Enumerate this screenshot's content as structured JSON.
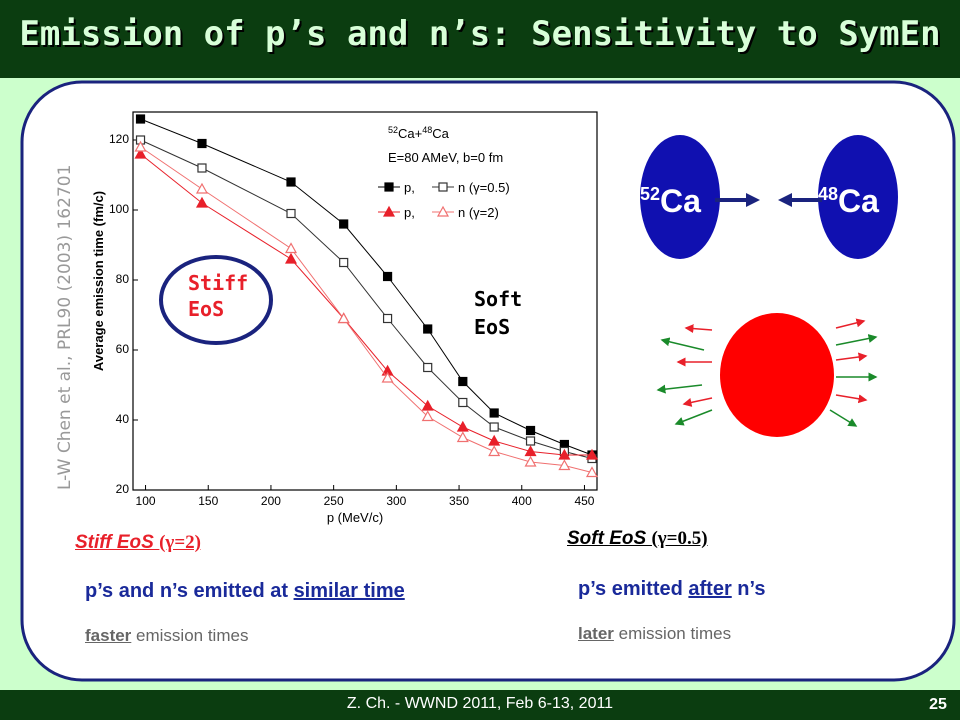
{
  "header": {
    "title": "Emission of p’s and n’s: Sensitivity to SymEn"
  },
  "citation": "L-W Chen et al., PRL90 (2003) 162701",
  "chart_data": {
    "type": "line",
    "annotation": {
      "reaction": [
        "52",
        "Ca+",
        "48",
        "Ca"
      ],
      "conditions": "E=80 AMeV, b=0 fm"
    },
    "xlabel": "p (MeV/c)",
    "ylabel": "Average emission time (fm/c)",
    "x": [
      96,
      145,
      216,
      258,
      293,
      325,
      353,
      378,
      407,
      434,
      456
    ],
    "xlim": [
      90,
      460
    ],
    "xticks": [
      100,
      150,
      200,
      250,
      300,
      350,
      400,
      450
    ],
    "ylim": [
      20,
      128
    ],
    "yticks": [
      20,
      40,
      60,
      80,
      100,
      120
    ],
    "series": [
      {
        "name": "p,",
        "color": "#000000",
        "marker": "square",
        "filled": true,
        "values": [
          126,
          119,
          108,
          96,
          81,
          66,
          51,
          42,
          37,
          33,
          30
        ]
      },
      {
        "name": "n (γ=0.5)",
        "color": "#333333",
        "marker": "square",
        "filled": false,
        "values": [
          120,
          112,
          99,
          85,
          69,
          55,
          45,
          38,
          34,
          31,
          29
        ]
      },
      {
        "name": "p,",
        "color": "#e8202a",
        "marker": "triangle",
        "filled": true,
        "values": [
          116,
          102,
          86,
          69,
          54,
          44,
          38,
          34,
          31,
          30,
          30
        ]
      },
      {
        "name": "n (γ=2)",
        "color": "#f07070",
        "marker": "triangle",
        "filled": false,
        "values": [
          118,
          106,
          89,
          69,
          52,
          41,
          35,
          31,
          28,
          27,
          25
        ]
      }
    ]
  },
  "labels": {
    "stiff": [
      "Stiff",
      "EoS"
    ],
    "soft": [
      "Soft",
      "EoS"
    ]
  },
  "nuclei": [
    {
      "mass": "52",
      "symbol": "Ca"
    },
    {
      "mass": "48",
      "symbol": "Ca"
    }
  ],
  "stiff": {
    "heading": [
      "Stiff EoS ",
      "(γ=2)"
    ],
    "line1": [
      "p’s and n’s emitted at ",
      "similar time"
    ],
    "line2": [
      "faster",
      " emission times"
    ]
  },
  "soft": {
    "heading": [
      "Soft EoS ",
      "(γ=0.5)"
    ],
    "line1": [
      "p’s emitted ",
      "after",
      " n’s"
    ],
    "line2": [
      "later",
      " emission times"
    ]
  },
  "footer": {
    "text": "Z. Ch. - WWND 2011, Feb 6-13, 2011",
    "page": "25"
  }
}
